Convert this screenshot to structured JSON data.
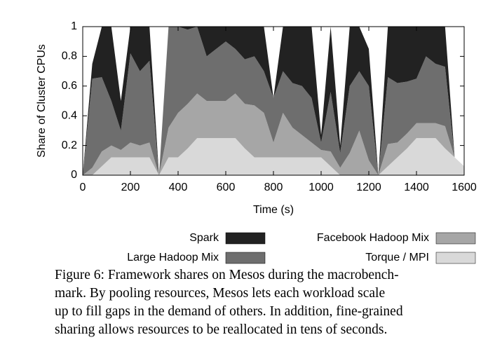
{
  "chart_data": {
    "type": "stacked_area",
    "ylabel": "Share of Cluster CPUs",
    "xlabel": "Time (s)",
    "x": [
      0,
      40,
      80,
      120,
      160,
      200,
      240,
      280,
      320,
      360,
      400,
      440,
      480,
      520,
      560,
      600,
      640,
      680,
      720,
      760,
      800,
      840,
      880,
      920,
      960,
      1000,
      1040,
      1080,
      1120,
      1160,
      1200,
      1240,
      1280,
      1320,
      1360,
      1400,
      1440,
      1480,
      1520,
      1560,
      1600
    ],
    "series": [
      {
        "name": "Spark",
        "color": "#222222",
        "values": [
          0,
          0.1,
          0.34,
          0.5,
          0.2,
          0.18,
          0.3,
          0.23,
          0,
          0,
          0,
          0.02,
          0,
          0.2,
          0.15,
          0.1,
          0.15,
          0.22,
          0.2,
          0.3,
          0,
          0.3,
          0.38,
          0.4,
          0.48,
          0.05,
          0.44,
          0.05,
          0.4,
          0.3,
          0.25,
          0,
          0.34,
          0.38,
          0.37,
          0.35,
          0.2,
          0.25,
          0.27,
          0,
          0
        ]
      },
      {
        "name": "Large Hadoop Mix",
        "color": "#6e6e6e",
        "values": [
          0,
          0.6,
          0.5,
          0.3,
          0.13,
          0.6,
          0.5,
          0.55,
          0,
          0.68,
          0.58,
          0.5,
          0.45,
          0.3,
          0.35,
          0.4,
          0.3,
          0.3,
          0.33,
          0.28,
          0.3,
          0.28,
          0.3,
          0.33,
          0.3,
          0.05,
          0.4,
          0.1,
          0.45,
          0.4,
          0.5,
          0,
          0.45,
          0.4,
          0.35,
          0.3,
          0.45,
          0.4,
          0.4,
          0,
          0
        ]
      },
      {
        "name": "Facebook Hadoop Mix",
        "color": "#a6a6a6",
        "values": [
          0,
          0.05,
          0.1,
          0.08,
          0.05,
          0.1,
          0.08,
          0.1,
          0,
          0.2,
          0.3,
          0.3,
          0.3,
          0.25,
          0.25,
          0.25,
          0.3,
          0.3,
          0.35,
          0.3,
          0.1,
          0.3,
          0.2,
          0.15,
          0.1,
          0.05,
          0.1,
          0.05,
          0.15,
          0.3,
          0.1,
          0,
          0.15,
          0.1,
          0.1,
          0.1,
          0.1,
          0.1,
          0.15,
          0,
          0
        ]
      },
      {
        "name": "Torque / MPI",
        "color": "#d9d9d9",
        "values": [
          0,
          0,
          0.06,
          0.12,
          0.12,
          0.12,
          0.12,
          0.12,
          0,
          0.12,
          0.12,
          0.18,
          0.25,
          0.25,
          0.25,
          0.25,
          0.25,
          0.18,
          0.12,
          0.12,
          0.12,
          0.12,
          0.12,
          0.12,
          0.12,
          0.12,
          0.06,
          0,
          0,
          0,
          0,
          0,
          0.06,
          0.12,
          0.18,
          0.25,
          0.25,
          0.25,
          0.18,
          0.12,
          0.06
        ]
      }
    ],
    "xlim": [
      0,
      1600
    ],
    "xticks": [
      0,
      200,
      400,
      600,
      800,
      1000,
      1200,
      1400,
      1600
    ],
    "ylim": [
      0,
      1
    ],
    "yticks": [
      0,
      0.2,
      0.4,
      0.6,
      0.8,
      1
    ],
    "legend": "bottom",
    "caption": [
      "Figure 6: Framework shares on Mesos during the macrobench-",
      "mark.  By pooling resources, Mesos lets each workload scale",
      "up to fill gaps in the demand of others. In addition, fine-grained",
      "sharing allows resources to be reallocated in tens of seconds."
    ]
  }
}
